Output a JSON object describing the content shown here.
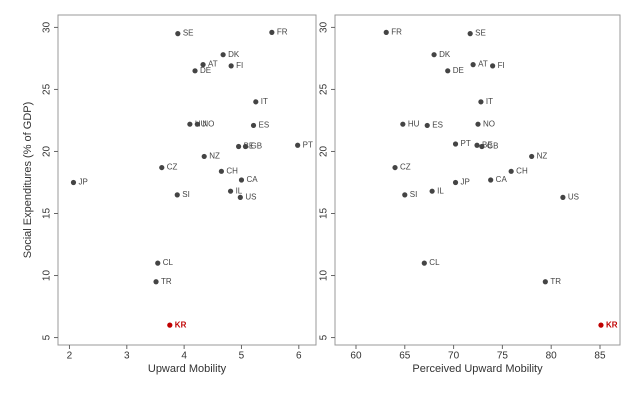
{
  "chart_data": [
    {
      "type": "scatter",
      "x_label": "Upward Mobility",
      "y_label": "Social Expenditures (% of GDP)",
      "xlim": [
        1.8,
        6.3
      ],
      "ylim": [
        4.4,
        31
      ],
      "xticks": [
        2,
        3,
        4,
        5,
        6
      ],
      "yticks": [
        5,
        10,
        15,
        20,
        25,
        30
      ],
      "series": [
        {
          "color": "#444444",
          "labels": [
            "SE",
            "FR",
            "DK",
            "AT",
            "FI",
            "DE",
            "IT",
            "HU",
            "NO",
            "ES",
            "PT",
            "BE",
            "GB",
            "NZ",
            "CZ",
            "CH",
            "CA",
            "JP",
            "SI",
            "IL",
            "US",
            "CL",
            "TR"
          ],
          "x": [
            3.89,
            5.53,
            4.68,
            4.33,
            4.82,
            4.19,
            5.25,
            4.1,
            4.23,
            5.21,
            5.98,
            4.95,
            5.07,
            4.35,
            3.61,
            4.65,
            5.0,
            2.07,
            3.88,
            4.81,
            4.98,
            3.54,
            3.51
          ],
          "values": [
            29.5,
            29.6,
            27.8,
            27.0,
            26.9,
            26.5,
            24.0,
            22.2,
            22.2,
            22.1,
            20.5,
            20.4,
            20.4,
            19.6,
            18.7,
            18.4,
            17.7,
            17.5,
            16.5,
            16.8,
            16.3,
            11.0,
            9.5
          ]
        },
        {
          "color": "#c00000",
          "labels": [
            "KR"
          ],
          "x": [
            3.75
          ],
          "values": [
            6.0
          ]
        }
      ]
    },
    {
      "type": "scatter",
      "x_label": "Perceived Upward Mobility",
      "xlim": [
        57.85,
        87.05
      ],
      "ylim": [
        4.4,
        31
      ],
      "xticks": [
        60,
        65,
        70,
        75,
        80,
        85
      ],
      "yticks": [
        5,
        10,
        15,
        20,
        25,
        30
      ],
      "series": [
        {
          "color": "#444444",
          "labels": [
            "FR",
            "SE",
            "DK",
            "AT",
            "FI",
            "DE",
            "IT",
            "HU",
            "ES",
            "NO",
            "PT",
            "BE",
            "GB",
            "NZ",
            "CZ",
            "CH",
            "CA",
            "JP",
            "IL",
            "SI",
            "US",
            "CL",
            "TR"
          ],
          "x": [
            63.1,
            71.7,
            68.0,
            72.0,
            74.0,
            69.4,
            72.8,
            64.8,
            67.3,
            72.5,
            70.2,
            72.4,
            72.9,
            78.0,
            64.0,
            75.9,
            73.8,
            70.2,
            67.8,
            65.0,
            81.2,
            67.0,
            79.4
          ],
          "values": [
            29.6,
            29.5,
            27.8,
            27.0,
            26.9,
            26.5,
            24.0,
            22.2,
            22.1,
            22.2,
            20.6,
            20.5,
            20.4,
            19.6,
            18.7,
            18.4,
            17.7,
            17.5,
            16.8,
            16.5,
            16.3,
            11.0,
            9.5
          ]
        },
        {
          "color": "#c00000",
          "labels": [
            "KR"
          ],
          "x": [
            85.1
          ],
          "values": [
            6.0
          ]
        }
      ]
    }
  ]
}
